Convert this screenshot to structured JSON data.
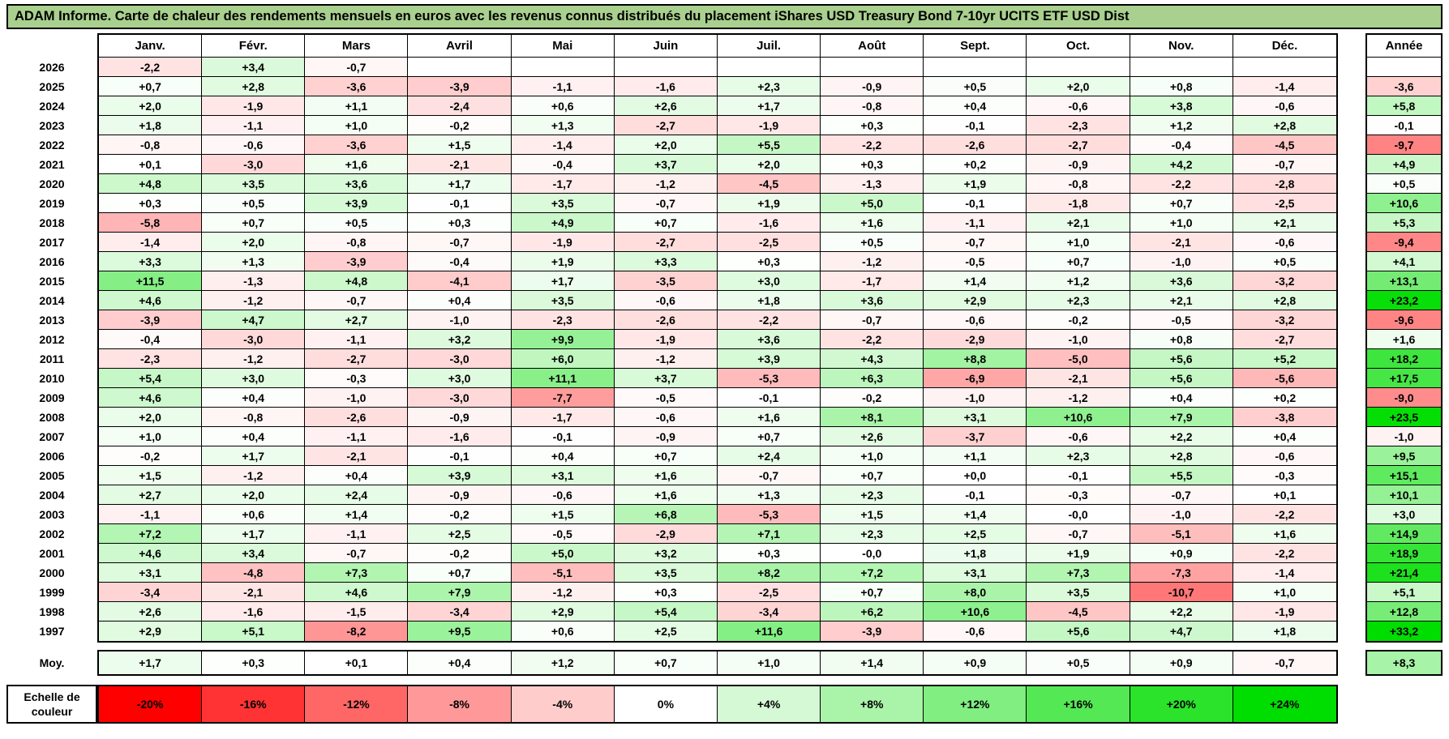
{
  "title": "ADAM Informe. Carte de chaleur des rendements mensuels en euros avec les revenus connus distribués du placement iShares USD Treasury Bond 7-10yr UCITS ETF USD Dist",
  "legend": {
    "label": "Echelle de couleur"
  },
  "colors": {
    "title_bg": "#a9d08e",
    "negative_extreme": "#ff0000",
    "positive_extreme": "#00dd00",
    "neutral": "#ffffff",
    "border": "#000000"
  },
  "chart_data": {
    "type": "heatmap",
    "title": "ADAM Informe. Carte de chaleur des rendements mensuels en euros avec les revenus connus distribués du placement iShares USD Treasury Bond 7-10yr UCITS ETF USD Dist",
    "unit": "%",
    "x_labels": [
      "Janv.",
      "Févr.",
      "Mars",
      "Avril",
      "Mai",
      "Juin",
      "Juil.",
      "Août",
      "Sept.",
      "Oct.",
      "Nov.",
      "Déc."
    ],
    "annual_label": "Année",
    "color_scale": {
      "min": -20,
      "max": 24,
      "stops": [
        "-20%",
        "-16%",
        "-12%",
        "-8%",
        "-4%",
        "0%",
        "+4%",
        "+8%",
        "+12%",
        "+16%",
        "+20%",
        "+24%"
      ]
    },
    "rows": [
      {
        "year": "2026",
        "values": [
          "-2,2",
          "+3,4",
          "-0,7",
          "",
          "",
          "",
          "",
          "",
          "",
          "",
          "",
          ""
        ],
        "annual": ""
      },
      {
        "year": "2025",
        "values": [
          "+0,7",
          "+2,8",
          "-3,6",
          "-3,9",
          "-1,1",
          "-1,6",
          "+2,3",
          "-0,9",
          "+0,5",
          "+2,0",
          "+0,8",
          "-1,4"
        ],
        "annual": "-3,6"
      },
      {
        "year": "2024",
        "values": [
          "+2,0",
          "-1,9",
          "+1,1",
          "-2,4",
          "+0,6",
          "+2,6",
          "+1,7",
          "-0,8",
          "+0,4",
          "-0,6",
          "+3,8",
          "-0,6"
        ],
        "annual": "+5,8"
      },
      {
        "year": "2023",
        "values": [
          "+1,8",
          "-1,1",
          "+1,0",
          "-0,2",
          "+1,3",
          "-2,7",
          "-1,9",
          "+0,3",
          "-0,1",
          "-2,3",
          "+1,2",
          "+2,8"
        ],
        "annual": "-0,1"
      },
      {
        "year": "2022",
        "values": [
          "-0,8",
          "-0,6",
          "-3,6",
          "+1,5",
          "-1,4",
          "+2,0",
          "+5,5",
          "-2,2",
          "-2,6",
          "-2,7",
          "-0,4",
          "-4,5"
        ],
        "annual": "-9,7"
      },
      {
        "year": "2021",
        "values": [
          "+0,1",
          "-3,0",
          "+1,6",
          "-2,1",
          "-0,4",
          "+3,7",
          "+2,0",
          "+0,3",
          "+0,2",
          "-0,9",
          "+4,2",
          "-0,7"
        ],
        "annual": "+4,9"
      },
      {
        "year": "2020",
        "values": [
          "+4,8",
          "+3,5",
          "+3,6",
          "+1,7",
          "-1,7",
          "-1,2",
          "-4,5",
          "-1,3",
          "+1,9",
          "-0,8",
          "-2,2",
          "-2,8"
        ],
        "annual": "+0,5"
      },
      {
        "year": "2019",
        "values": [
          "+0,3",
          "+0,5",
          "+3,9",
          "-0,1",
          "+3,5",
          "-0,7",
          "+1,9",
          "+5,0",
          "-0,1",
          "-1,8",
          "+0,7",
          "-2,5"
        ],
        "annual": "+10,6"
      },
      {
        "year": "2018",
        "values": [
          "-5,8",
          "+0,7",
          "+0,5",
          "+0,3",
          "+4,9",
          "+0,7",
          "-1,6",
          "+1,6",
          "-1,1",
          "+2,1",
          "+1,0",
          "+2,1"
        ],
        "annual": "+5,3"
      },
      {
        "year": "2017",
        "values": [
          "-1,4",
          "+2,0",
          "-0,8",
          "-0,7",
          "-1,9",
          "-2,7",
          "-2,5",
          "+0,5",
          "-0,7",
          "+1,0",
          "-2,1",
          "-0,6"
        ],
        "annual": "-9,4"
      },
      {
        "year": "2016",
        "values": [
          "+3,3",
          "+1,3",
          "-3,9",
          "-0,4",
          "+1,9",
          "+3,3",
          "+0,3",
          "-1,2",
          "-0,5",
          "+0,7",
          "-1,0",
          "+0,5"
        ],
        "annual": "+4,1"
      },
      {
        "year": "2015",
        "values": [
          "+11,5",
          "-1,3",
          "+4,8",
          "-4,1",
          "+1,7",
          "-3,5",
          "+3,0",
          "-1,7",
          "+1,4",
          "+1,2",
          "+3,6",
          "-3,2"
        ],
        "annual": "+13,1"
      },
      {
        "year": "2014",
        "values": [
          "+4,6",
          "-1,2",
          "-0,7",
          "+0,4",
          "+3,5",
          "-0,6",
          "+1,8",
          "+3,6",
          "+2,9",
          "+2,3",
          "+2,1",
          "+2,8"
        ],
        "annual": "+23,2"
      },
      {
        "year": "2013",
        "values": [
          "-3,9",
          "+4,7",
          "+2,7",
          "-1,0",
          "-2,3",
          "-2,6",
          "-2,2",
          "-0,7",
          "-0,6",
          "-0,2",
          "-0,5",
          "-3,2"
        ],
        "annual": "-9,6"
      },
      {
        "year": "2012",
        "values": [
          "-0,4",
          "-3,0",
          "-1,1",
          "+3,2",
          "+9,9",
          "-1,9",
          "+3,6",
          "-2,2",
          "-2,9",
          "-1,0",
          "+0,8",
          "-2,7"
        ],
        "annual": "+1,6"
      },
      {
        "year": "2011",
        "values": [
          "-2,3",
          "-1,2",
          "-2,7",
          "-3,0",
          "+6,0",
          "-1,2",
          "+3,9",
          "+4,3",
          "+8,8",
          "-5,0",
          "+5,6",
          "+5,2"
        ],
        "annual": "+18,2"
      },
      {
        "year": "2010",
        "values": [
          "+5,4",
          "+3,0",
          "-0,3",
          "+3,0",
          "+11,1",
          "+3,7",
          "-5,3",
          "+6,3",
          "-6,9",
          "-2,1",
          "+5,6",
          "-5,6"
        ],
        "annual": "+17,5"
      },
      {
        "year": "2009",
        "values": [
          "+4,6",
          "+0,4",
          "-1,0",
          "-3,0",
          "-7,7",
          "-0,5",
          "-0,1",
          "-0,2",
          "-1,0",
          "-1,2",
          "+0,4",
          "+0,2"
        ],
        "annual": "-9,0"
      },
      {
        "year": "2008",
        "values": [
          "+2,0",
          "-0,8",
          "-2,6",
          "-0,9",
          "-1,7",
          "-0,6",
          "+1,6",
          "+8,1",
          "+3,1",
          "+10,6",
          "+7,9",
          "-3,8"
        ],
        "annual": "+23,5"
      },
      {
        "year": "2007",
        "values": [
          "+1,0",
          "+0,4",
          "-1,1",
          "-1,6",
          "-0,1",
          "-0,9",
          "+0,7",
          "+2,6",
          "-3,7",
          "-0,6",
          "+2,2",
          "+0,4"
        ],
        "annual": "-1,0"
      },
      {
        "year": "2006",
        "values": [
          "-0,2",
          "+1,7",
          "-2,1",
          "-0,1",
          "+0,4",
          "+0,7",
          "+2,4",
          "+1,0",
          "+1,1",
          "+2,3",
          "+2,8",
          "-0,6"
        ],
        "annual": "+9,5"
      },
      {
        "year": "2005",
        "values": [
          "+1,5",
          "-1,2",
          "+0,4",
          "+3,9",
          "+3,1",
          "+1,6",
          "-0,7",
          "+0,7",
          "+0,0",
          "-0,1",
          "+5,5",
          "-0,3"
        ],
        "annual": "+15,1"
      },
      {
        "year": "2004",
        "values": [
          "+2,7",
          "+2,0",
          "+2,4",
          "-0,9",
          "-0,6",
          "+1,6",
          "+1,3",
          "+2,3",
          "-0,1",
          "-0,3",
          "-0,7",
          "+0,1"
        ],
        "annual": "+10,1"
      },
      {
        "year": "2003",
        "values": [
          "-1,1",
          "+0,6",
          "+1,4",
          "-0,2",
          "+1,5",
          "+6,8",
          "-5,3",
          "+1,5",
          "+1,4",
          "-0,0",
          "-1,0",
          "-2,2"
        ],
        "annual": "+3,0"
      },
      {
        "year": "2002",
        "values": [
          "+7,2",
          "+1,7",
          "-1,1",
          "+2,5",
          "-0,5",
          "-2,9",
          "+7,1",
          "+2,3",
          "+2,5",
          "-0,7",
          "-5,1",
          "+1,6"
        ],
        "annual": "+14,9"
      },
      {
        "year": "2001",
        "values": [
          "+4,6",
          "+3,4",
          "-0,7",
          "-0,2",
          "+5,0",
          "+3,2",
          "+0,3",
          "-0,0",
          "+1,8",
          "+1,9",
          "+0,9",
          "-2,2"
        ],
        "annual": "+18,9"
      },
      {
        "year": "2000",
        "values": [
          "+3,1",
          "-4,8",
          "+7,3",
          "+0,7",
          "-5,1",
          "+3,5",
          "+8,2",
          "+7,2",
          "+3,1",
          "+7,3",
          "-7,3",
          "-1,4"
        ],
        "annual": "+21,4"
      },
      {
        "year": "1999",
        "values": [
          "-3,4",
          "-2,1",
          "+4,6",
          "+7,9",
          "-1,2",
          "+0,3",
          "-2,5",
          "+0,7",
          "+8,0",
          "+3,5",
          "-10,7",
          "+1,0"
        ],
        "annual": "+5,1"
      },
      {
        "year": "1998",
        "values": [
          "+2,6",
          "-1,6",
          "-1,5",
          "-3,4",
          "+2,9",
          "+5,4",
          "-3,4",
          "+6,2",
          "+10,6",
          "-4,5",
          "+2,2",
          "-1,9"
        ],
        "annual": "+12,8"
      },
      {
        "year": "1997",
        "values": [
          "+2,9",
          "+5,1",
          "-8,2",
          "+9,5",
          "+0,6",
          "+2,5",
          "+11,6",
          "-3,9",
          "-0,6",
          "+5,6",
          "+4,7",
          "+1,8"
        ],
        "annual": "+33,2"
      }
    ],
    "average_row": {
      "label": "Moy.",
      "values": [
        "+1,7",
        "+0,3",
        "+0,1",
        "+0,4",
        "+1,2",
        "+0,7",
        "+1,0",
        "+1,4",
        "+0,9",
        "+0,5",
        "+0,9",
        "-0,7"
      ],
      "annual": "+8,3"
    }
  }
}
